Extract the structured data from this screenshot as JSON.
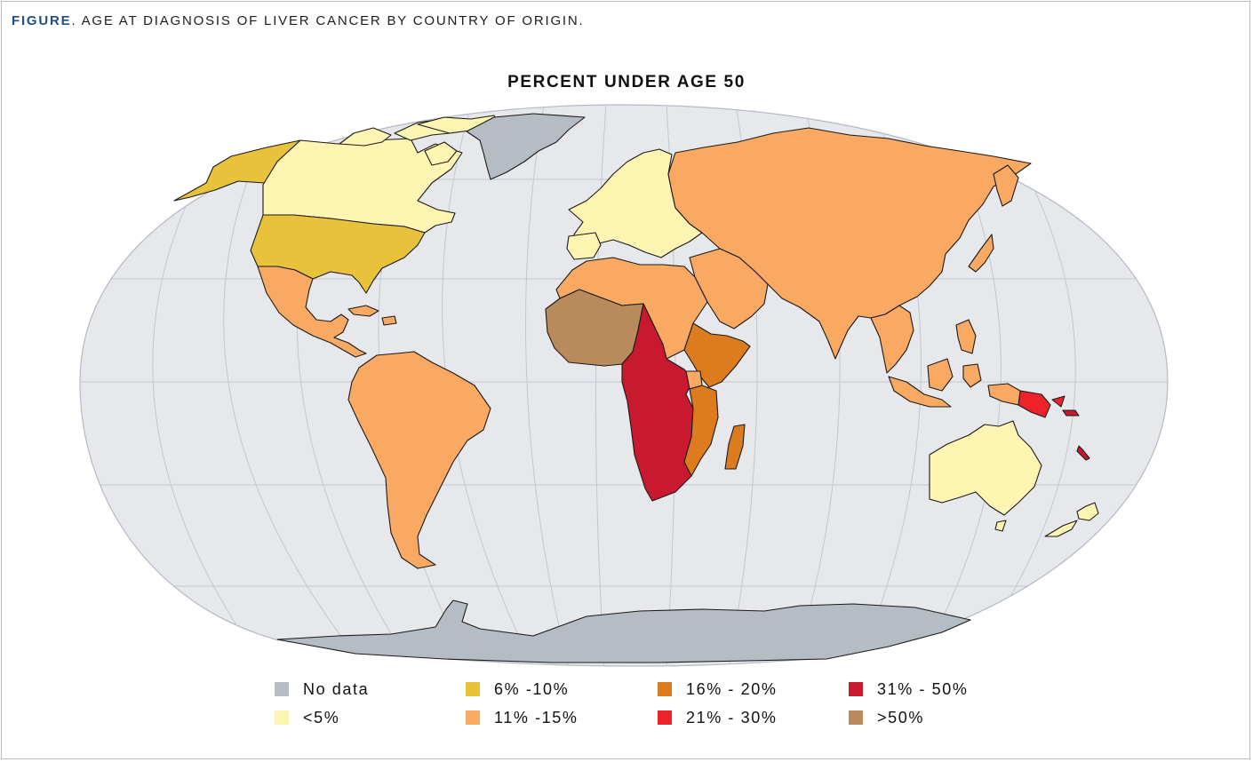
{
  "figure": {
    "label": "FIGURE",
    "caption": ". AGE AT DIAGNOSIS OF LIVER CANCER BY COUNTRY OF ORIGIN."
  },
  "map_title": "PERCENT UNDER AGE 50",
  "colors": {
    "ocean": "#e7e8ec",
    "graticule": "#c2c7cf",
    "border": "#1a1a1a",
    "no_data": "#b6bcc4",
    "lt5": "#fff5b3",
    "p6_10": "#e7c23a",
    "p11_15": "#f9a962",
    "p16_20": "#dd7c1e",
    "p21_30": "#ee2329",
    "p31_50": "#c8192f",
    "gt50": "#b88a5c"
  },
  "legend": [
    {
      "key": "no_data",
      "label": "No data",
      "color": "#b6bcc4"
    },
    {
      "key": "lt5",
      "label": "<5%",
      "color": "#fff5b3"
    },
    {
      "key": "p6_10",
      "label": "6% -10%",
      "color": "#e7c23a"
    },
    {
      "key": "p11_15",
      "label": "11% -15%",
      "color": "#f9a962"
    },
    {
      "key": "p16_20",
      "label": "16% - 20%",
      "color": "#dd7c1e"
    },
    {
      "key": "p21_30",
      "label": "21% - 30%",
      "color": "#ee2329"
    },
    {
      "key": "p31_50",
      "label": "31% - 50%",
      "color": "#c8192f"
    },
    {
      "key": "gt50",
      "label": ">50%",
      "color": "#b88a5c"
    }
  ],
  "regions": [
    {
      "name": "Greenland",
      "category": "no_data"
    },
    {
      "name": "Antarctica",
      "category": "no_data"
    },
    {
      "name": "Canada",
      "category": "lt5"
    },
    {
      "name": "Europe",
      "category": "lt5"
    },
    {
      "name": "Australia",
      "category": "lt5"
    },
    {
      "name": "New Zealand",
      "category": "lt5"
    },
    {
      "name": "Alaska",
      "category": "p6_10"
    },
    {
      "name": "United States",
      "category": "p6_10"
    },
    {
      "name": "Mexico & Central America",
      "category": "p11_15"
    },
    {
      "name": "Caribbean",
      "category": "p11_15"
    },
    {
      "name": "South America",
      "category": "p11_15"
    },
    {
      "name": "Northern Africa",
      "category": "p11_15"
    },
    {
      "name": "Middle East",
      "category": "p11_15"
    },
    {
      "name": "Russia & Asia",
      "category": "p11_15"
    },
    {
      "name": "India",
      "category": "p11_15"
    },
    {
      "name": "Southeast Asia",
      "category": "p11_15"
    },
    {
      "name": "Japan",
      "category": "p11_15"
    },
    {
      "name": "Uganda",
      "category": "p11_15"
    },
    {
      "name": "Horn of Africa",
      "category": "p16_20"
    },
    {
      "name": "East Africa",
      "category": "p16_20"
    },
    {
      "name": "Madagascar",
      "category": "p16_20"
    },
    {
      "name": "Papua New Guinea",
      "category": "p21_30"
    },
    {
      "name": "Central & Southern Africa",
      "category": "p31_50"
    },
    {
      "name": "Solomon Islands",
      "category": "p31_50"
    },
    {
      "name": "West Africa",
      "category": "gt50"
    }
  ]
}
